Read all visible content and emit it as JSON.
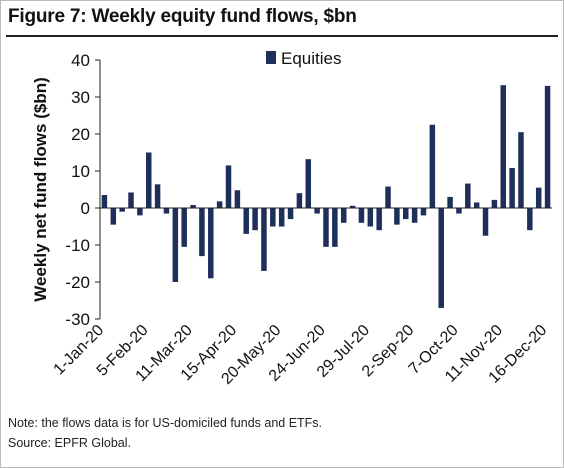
{
  "figure_title": "Figure 7: Weekly equity fund flows, $bn",
  "notes": {
    "line1": "Note: the flows data is for US-domiciled funds and ETFs.",
    "line2": "Source: EPFR Global."
  },
  "chart_data": {
    "type": "bar",
    "title": "Figure 7: Weekly equity fund flows, $bn",
    "xlabel": "",
    "ylabel": "Weekly net fund flows ($bn)",
    "ylim": [
      -30,
      40
    ],
    "yticks": [
      40,
      30,
      20,
      10,
      0,
      -10,
      -20,
      -30
    ],
    "x_tick_labels": [
      "1-Jan-20",
      "5-Feb-20",
      "11-Mar-20",
      "15-Apr-20",
      "20-May-20",
      "24-Jun-20",
      "29-Jul-20",
      "2-Sep-20",
      "7-Oct-20",
      "11-Nov-20",
      "16-Dec-20"
    ],
    "grid": false,
    "legend": "top-center",
    "colors": {
      "bar": "#1f2f5b",
      "axis": "#222222"
    },
    "series": [
      {
        "name": "Equities",
        "values": [
          3.5,
          -4.5,
          -1,
          4.2,
          -2,
          15,
          6.4,
          -1.5,
          -20,
          -10.5,
          0.8,
          -13,
          -19,
          1.8,
          11.5,
          4.8,
          -7,
          -6,
          -17,
          -5,
          -5,
          -3,
          4,
          13.2,
          -1.5,
          -10.5,
          -10.5,
          -4,
          0.6,
          -4,
          -5,
          -6,
          5.8,
          -4.5,
          -3,
          -4,
          -2,
          22.5,
          -27,
          3,
          -1.5,
          6.6,
          1.5,
          -7.5,
          2.2,
          33.2,
          10.8,
          20.5,
          -6,
          5.5,
          33
        ]
      }
    ]
  }
}
